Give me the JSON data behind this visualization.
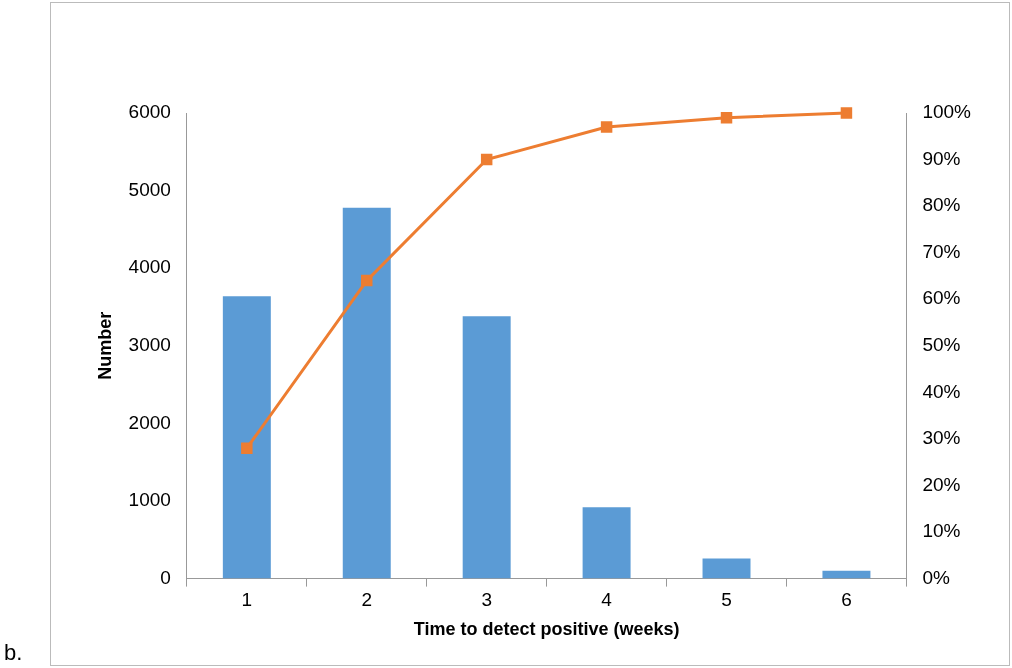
{
  "chart_data": {
    "type": "bar",
    "xlabel": "Time to detect positive (weeks)",
    "ylabel": "Number",
    "categories": [
      "1",
      "2",
      "3",
      "4",
      "5",
      "6"
    ],
    "series": [
      {
        "color": "#5b9bd5",
        "values": [
          3640,
          4780,
          3380,
          920,
          260,
          100
        ]
      },
      {
        "type": "line",
        "axis": "y2",
        "color": "#ed7d31",
        "marker": "square",
        "values": [
          28,
          64,
          90,
          97,
          99,
          100
        ]
      }
    ],
    "ylim": [
      0,
      6000
    ],
    "yticks": [
      0,
      1000,
      2000,
      3000,
      4000,
      5000,
      6000
    ],
    "y2lim": [
      0,
      100
    ],
    "y2ticks": [
      {
        "value": 0,
        "label": "0%"
      },
      {
        "value": 10,
        "label": "10%"
      },
      {
        "value": 20,
        "label": "20%"
      },
      {
        "value": 30,
        "label": "30%"
      },
      {
        "value": 40,
        "label": "40%"
      },
      {
        "value": 50,
        "label": "50%"
      },
      {
        "value": 60,
        "label": "60%"
      },
      {
        "value": 70,
        "label": "70%"
      },
      {
        "value": 80,
        "label": "80%"
      },
      {
        "value": 90,
        "label": "90%"
      },
      {
        "value": 100,
        "label": "100%"
      }
    ],
    "grid": false,
    "legend": false,
    "annotations": [
      "b."
    ]
  }
}
